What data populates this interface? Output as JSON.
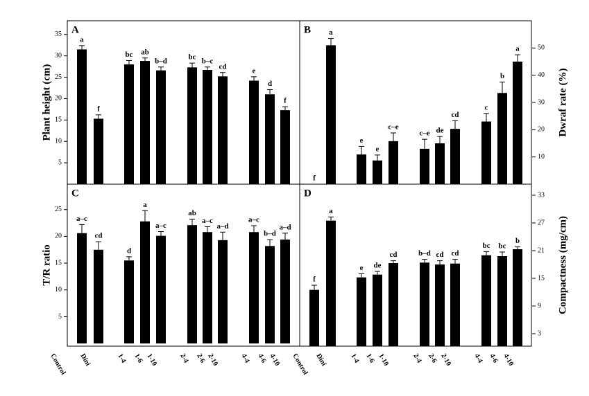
{
  "chart_data": [
    {
      "type": "bar",
      "panel": "A",
      "ylabel": "Plant height (cm)",
      "axis_side": "left",
      "color": "#000000",
      "ylim": [
        0,
        38.2
      ],
      "yticks": [
        5,
        10,
        15,
        20,
        25,
        30,
        35
      ],
      "values": [
        31.5,
        15.3,
        28.0,
        28.8,
        26.6,
        27.3,
        26.7,
        25.2,
        24.2,
        21.0,
        17.3
      ],
      "errors": [
        0.9,
        0.9,
        0.9,
        0.7,
        0.8,
        1.0,
        0.7,
        0.9,
        0.9,
        1.1,
        0.8
      ],
      "letters": [
        "a",
        "f",
        "bc",
        "ab",
        "b–d",
        "bc",
        "b–c",
        "cd",
        "e",
        "d",
        "f"
      ]
    },
    {
      "type": "bar",
      "panel": "B",
      "ylabel": "Dwraf rate (%)",
      "axis_side": "right",
      "color": "#000000",
      "ylim": [
        0,
        60
      ],
      "yticks": [
        10,
        20,
        30,
        40,
        50
      ],
      "values": [
        0,
        51,
        10.9,
        8.7,
        15.8,
        13,
        15,
        20.3,
        23,
        33.5,
        45
      ],
      "errors": [
        0,
        2.5,
        3,
        2,
        3,
        3.5,
        2.5,
        3,
        3,
        4,
        2.5
      ],
      "letters": [
        "f",
        "a",
        "e",
        "e",
        "c–e",
        "c–e",
        "de",
        "cd",
        "c",
        "b",
        "a"
      ]
    },
    {
      "type": "bar",
      "panel": "C",
      "ylabel": "T/R ratio",
      "axis_side": "left",
      "color": "#000000",
      "ylim": [
        -0.5,
        29.75
      ],
      "yticks": [
        5,
        10,
        15,
        20,
        25
      ],
      "values": [
        20.6,
        17.5,
        15.5,
        22.8,
        20.1,
        22.1,
        20.8,
        19.3,
        20.8,
        18.2,
        19.4
      ],
      "errors": [
        1.6,
        1.5,
        0.7,
        2.0,
        0.8,
        1.1,
        1.0,
        1.5,
        1.2,
        1.2,
        1.2
      ],
      "letters": [
        "a–c",
        "cd",
        "d",
        "a",
        "a–c",
        "ab",
        "a–c",
        "a–d",
        "a–c",
        "b–d",
        "a–d"
      ]
    },
    {
      "type": "bar",
      "panel": "D",
      "ylabel": "Compactness (mg/cm)",
      "axis_side": "right",
      "color": "#000000",
      "ylim": [
        0.3,
        35.4
      ],
      "yticks": [
        3,
        9,
        15,
        21,
        27,
        33
      ],
      "values": [
        12.5,
        27.5,
        15.2,
        15.8,
        18.3,
        18.4,
        18.0,
        18.2,
        20.0,
        19.8,
        21.3
      ],
      "errors": [
        1.0,
        0.8,
        0.8,
        0.7,
        0.5,
        0.7,
        0.8,
        0.9,
        0.8,
        0.9,
        0.5
      ],
      "letters": [
        "f",
        "a",
        "e",
        "de",
        "cd",
        "b–d",
        "cd",
        "cd",
        "bc",
        "bc",
        "b"
      ]
    }
  ],
  "x_axis_labels": {
    "left": [
      "Control",
      "Dini",
      "1-4",
      "1-6",
      "1-10",
      "2-4",
      "2-6",
      "2-10",
      "4-4",
      "4-6",
      "4-10",
      "Control"
    ],
    "right": [
      "Dini",
      "1-4",
      "1-6",
      "1-10",
      "2-4",
      "2-6",
      "2-10",
      "4-4",
      "4-6",
      "4-10"
    ]
  }
}
